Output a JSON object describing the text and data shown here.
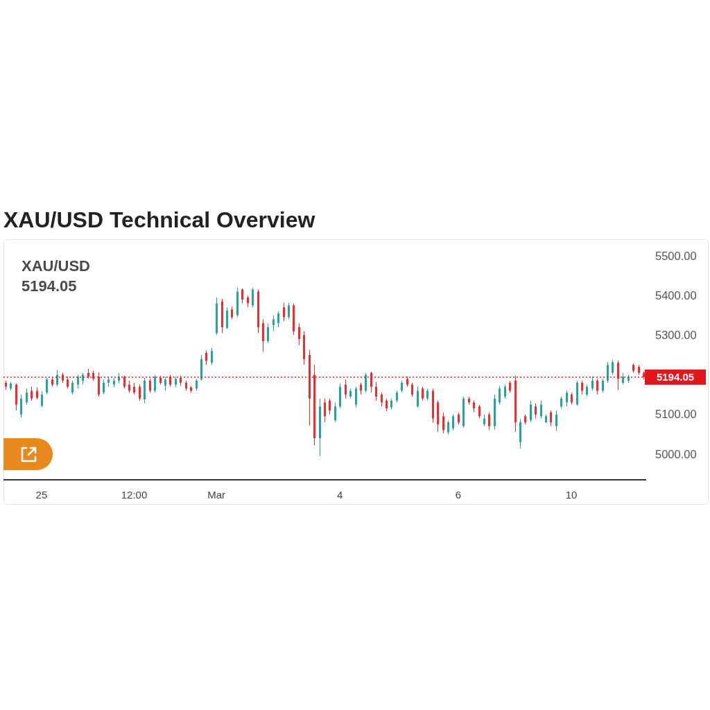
{
  "chart_data": {
    "type": "candlestick",
    "title": "XAU/USD Technical Overview",
    "annotations": [
      "XAU/USD",
      "5194.05"
    ],
    "categories": [
      null,
      null,
      null,
      null,
      null,
      null,
      null,
      "25",
      null,
      null,
      null,
      null,
      null,
      null,
      null,
      null,
      null,
      null,
      null,
      null,
      null,
      null,
      null,
      null,
      null,
      "12:00",
      null,
      null,
      null,
      null,
      null,
      null,
      null,
      null,
      null,
      null,
      null,
      null,
      null,
      null,
      null,
      "Mar",
      null,
      null,
      null,
      null,
      null,
      null,
      null,
      null,
      null,
      null,
      null,
      null,
      null,
      null,
      null,
      null,
      null,
      null,
      null,
      null,
      null,
      null,
      null,
      "4",
      null,
      null,
      null,
      null,
      null,
      null,
      null,
      null,
      null,
      null,
      null,
      null,
      null,
      null,
      null,
      null,
      null,
      null,
      null,
      null,
      null,
      null,
      "6",
      null,
      null,
      null,
      null,
      null,
      null,
      null,
      null,
      null,
      null,
      null,
      null,
      null,
      null,
      null,
      null,
      null,
      null,
      null,
      null,
      null,
      "10",
      null,
      null,
      null,
      null,
      null,
      null,
      null,
      null,
      null,
      null,
      null,
      null,
      null,
      null
    ],
    "ohlc": [
      [
        5180,
        5185,
        5162,
        5170
      ],
      [
        5165,
        5182,
        5160,
        5178
      ],
      [
        5175,
        5178,
        5110,
        5125
      ],
      [
        5100,
        5150,
        5092,
        5140
      ],
      [
        5130,
        5165,
        5125,
        5155
      ],
      [
        5160,
        5170,
        5135,
        5140
      ],
      [
        5160,
        5168,
        5138,
        5142
      ],
      [
        5122,
        5158,
        5118,
        5150
      ],
      [
        5155,
        5192,
        5150,
        5188
      ],
      [
        5188,
        5192,
        5170,
        5175
      ],
      [
        5175,
        5212,
        5170,
        5200
      ],
      [
        5200,
        5205,
        5180,
        5185
      ],
      [
        5188,
        5195,
        5165,
        5170
      ],
      [
        5155,
        5185,
        5150,
        5180
      ],
      [
        5175,
        5200,
        5165,
        5195
      ],
      [
        5185,
        5205,
        5175,
        5200
      ],
      [
        5205,
        5215,
        5190,
        5195
      ],
      [
        5205,
        5210,
        5185,
        5190
      ],
      [
        5195,
        5206,
        5145,
        5150
      ],
      [
        5155,
        5188,
        5150,
        5180
      ],
      [
        5180,
        5195,
        5170,
        5188
      ],
      [
        5175,
        5192,
        5168,
        5185
      ],
      [
        5185,
        5205,
        5178,
        5195
      ],
      [
        5195,
        5198,
        5165,
        5170
      ],
      [
        5175,
        5185,
        5155,
        5160
      ],
      [
        5170,
        5180,
        5150,
        5155
      ],
      [
        5170,
        5175,
        5135,
        5140
      ],
      [
        5138,
        5192,
        5128,
        5185
      ],
      [
        5185,
        5190,
        5155,
        5160
      ],
      [
        5160,
        5200,
        5155,
        5195
      ],
      [
        5192,
        5198,
        5175,
        5180
      ],
      [
        5172,
        5195,
        5160,
        5188
      ],
      [
        5195,
        5200,
        5170,
        5175
      ],
      [
        5175,
        5195,
        5168,
        5190
      ],
      [
        5192,
        5198,
        5172,
        5180
      ],
      [
        5180,
        5185,
        5160,
        5165
      ],
      [
        5168,
        5172,
        5155,
        5160
      ],
      [
        5165,
        5190,
        5160,
        5185
      ],
      [
        5188,
        5250,
        5185,
        5240
      ],
      [
        5255,
        5262,
        5225,
        5235
      ],
      [
        5230,
        5268,
        5225,
        5260
      ],
      [
        5305,
        5395,
        5300,
        5380
      ],
      [
        5385,
        5392,
        5305,
        5320
      ],
      [
        5318,
        5370,
        5315,
        5362
      ],
      [
        5365,
        5372,
        5340,
        5345
      ],
      [
        5350,
        5420,
        5345,
        5410
      ],
      [
        5415,
        5418,
        5380,
        5390
      ],
      [
        5395,
        5400,
        5370,
        5380
      ],
      [
        5375,
        5420,
        5370,
        5415
      ],
      [
        5410,
        5415,
        5305,
        5320
      ],
      [
        5330,
        5340,
        5258,
        5285
      ],
      [
        5285,
        5330,
        5280,
        5320
      ],
      [
        5325,
        5350,
        5310,
        5340
      ],
      [
        5330,
        5360,
        5320,
        5355
      ],
      [
        5370,
        5382,
        5335,
        5345
      ],
      [
        5345,
        5382,
        5340,
        5375
      ],
      [
        5375,
        5380,
        5300,
        5310
      ],
      [
        5320,
        5330,
        5275,
        5290
      ],
      [
        5300,
        5310,
        5225,
        5240
      ],
      [
        5250,
        5262,
        5072,
        5140
      ],
      [
        5200,
        5225,
        5022,
        5040
      ],
      [
        5040,
        5140,
        4995,
        5120
      ],
      [
        5130,
        5140,
        5080,
        5095
      ],
      [
        5135,
        5140,
        5100,
        5110
      ],
      [
        5085,
        5130,
        5080,
        5120
      ],
      [
        5120,
        5178,
        5115,
        5170
      ],
      [
        5175,
        5188,
        5140,
        5150
      ],
      [
        5145,
        5165,
        5140,
        5160
      ],
      [
        5125,
        5170,
        5118,
        5165
      ],
      [
        5175,
        5180,
        5150,
        5160
      ],
      [
        5160,
        5205,
        5155,
        5200
      ],
      [
        5205,
        5208,
        5155,
        5170
      ],
      [
        5170,
        5182,
        5135,
        5145
      ],
      [
        5150,
        5155,
        5120,
        5130
      ],
      [
        5135,
        5140,
        5108,
        5115
      ],
      [
        5118,
        5140,
        5112,
        5135
      ],
      [
        5135,
        5160,
        5130,
        5155
      ],
      [
        5160,
        5185,
        5155,
        5180
      ],
      [
        5190,
        5196,
        5170,
        5175
      ],
      [
        5175,
        5180,
        5145,
        5150
      ],
      [
        5120,
        5170,
        5117,
        5160
      ],
      [
        5165,
        5170,
        5135,
        5140
      ],
      [
        5140,
        5165,
        5135,
        5160
      ],
      [
        5160,
        5165,
        5079,
        5090
      ],
      [
        5130,
        5135,
        5056,
        5075
      ],
      [
        5095,
        5105,
        5052,
        5060
      ],
      [
        5055,
        5085,
        5049,
        5080
      ],
      [
        5065,
        5100,
        5060,
        5095
      ],
      [
        5100,
        5105,
        5075,
        5080
      ],
      [
        5070,
        5145,
        5066,
        5140
      ],
      [
        5140,
        5145,
        5125,
        5130
      ],
      [
        5130,
        5135,
        5105,
        5115
      ],
      [
        5120,
        5125,
        5090,
        5095
      ],
      [
        5075,
        5100,
        5070,
        5090
      ],
      [
        5100,
        5105,
        5060,
        5070
      ],
      [
        5070,
        5150,
        5062,
        5140
      ],
      [
        5130,
        5172,
        5125,
        5165
      ],
      [
        5145,
        5175,
        5140,
        5170
      ],
      [
        5180,
        5185,
        5155,
        5160
      ],
      [
        5185,
        5198,
        5056,
        5080
      ],
      [
        5030,
        5090,
        5014,
        5080
      ],
      [
        5095,
        5100,
        5075,
        5080
      ],
      [
        5085,
        5135,
        5080,
        5125
      ],
      [
        5120,
        5128,
        5090,
        5100
      ],
      [
        5095,
        5135,
        5090,
        5125
      ],
      [
        5080,
        5100,
        5078,
        5095
      ],
      [
        5105,
        5110,
        5070,
        5080
      ],
      [
        5070,
        5110,
        5058,
        5100
      ],
      [
        5120,
        5145,
        5115,
        5140
      ],
      [
        5130,
        5160,
        5120,
        5155
      ],
      [
        5150,
        5155,
        5125,
        5130
      ],
      [
        5125,
        5185,
        5122,
        5180
      ],
      [
        5180,
        5185,
        5150,
        5160
      ],
      [
        5150,
        5175,
        5145,
        5170
      ],
      [
        5165,
        5195,
        5160,
        5185
      ],
      [
        5185,
        5190,
        5150,
        5160
      ],
      [
        5160,
        5190,
        5155,
        5185
      ],
      [
        5185,
        5232,
        5180,
        5225
      ],
      [
        5205,
        5238,
        5200,
        5232
      ],
      [
        5230,
        5236,
        5161,
        5190
      ],
      [
        5180,
        5205,
        5175,
        5195
      ],
      [
        5185,
        5200,
        5180,
        5195
      ],
      [
        5225,
        5228,
        5205,
        5210
      ],
      [
        5220,
        5225,
        5200,
        5205
      ],
      [
        5205,
        5208,
        5188,
        5194
      ]
    ],
    "colors": [
      "#ef2b2d",
      "#26a69a",
      "#ef2b2d",
      "#26a69a",
      "#26a69a",
      "#ef2b2d",
      "#ef2b2d",
      "#26a69a",
      "#26a69a",
      "#ef2b2d",
      "#26a69a",
      "#ef2b2d",
      "#ef2b2d",
      "#26a69a",
      "#26a69a",
      "#26a69a",
      "#ef2b2d",
      "#ef2b2d",
      "#ef2b2d",
      "#26a69a",
      "#26a69a",
      "#26a69a",
      "#26a69a",
      "#ef2b2d",
      "#ef2b2d",
      "#ef2b2d",
      "#ef2b2d",
      "#26a69a",
      "#ef2b2d",
      "#26a69a",
      "#ef2b2d",
      "#26a69a",
      "#ef2b2d",
      "#26a69a",
      "#ef2b2d",
      "#ef2b2d",
      "#ef2b2d",
      "#26a69a",
      "#26a69a",
      "#ef2b2d",
      "#26a69a",
      "#26a69a",
      "#ef2b2d",
      "#26a69a",
      "#ef2b2d",
      "#26a69a",
      "#ef2b2d",
      "#ef2b2d",
      "#26a69a",
      "#ef2b2d",
      "#ef2b2d",
      "#26a69a",
      "#26a69a",
      "#26a69a",
      "#ef2b2d",
      "#26a69a",
      "#ef2b2d",
      "#ef2b2d",
      "#ef2b2d",
      "#ef2b2d",
      "#ef2b2d",
      "#26a69a",
      "#ef2b2d",
      "#ef2b2d",
      "#26a69a",
      "#26a69a",
      "#ef2b2d",
      "#26a69a",
      "#26a69a",
      "#ef2b2d",
      "#26a69a",
      "#ef2b2d",
      "#ef2b2d",
      "#ef2b2d",
      "#ef2b2d",
      "#26a69a",
      "#26a69a",
      "#26a69a",
      "#ef2b2d",
      "#ef2b2d",
      "#26a69a",
      "#ef2b2d",
      "#26a69a",
      "#ef2b2d",
      "#ef2b2d",
      "#ef2b2d",
      "#26a69a",
      "#26a69a",
      "#ef2b2d",
      "#26a69a",
      "#ef2b2d",
      "#ef2b2d",
      "#ef2b2d",
      "#26a69a",
      "#ef2b2d",
      "#26a69a",
      "#26a69a",
      "#26a69a",
      "#ef2b2d",
      "#ef2b2d",
      "#26a69a",
      "#ef2b2d",
      "#26a69a",
      "#ef2b2d",
      "#26a69a",
      "#26a69a",
      "#ef2b2d",
      "#26a69a",
      "#26a69a",
      "#26a69a",
      "#ef2b2d",
      "#26a69a",
      "#ef2b2d",
      "#26a69a",
      "#26a69a",
      "#ef2b2d",
      "#26a69a",
      "#26a69a",
      "#26a69a",
      "#ef2b2d",
      "#26a69a",
      "#26a69a",
      "#ef2b2d",
      "#ef2b2d",
      "#ef2b2d"
    ],
    "ylim": [
      4935,
      5542
    ],
    "yticks": [
      {
        "value": 5000,
        "label": "5000.00"
      },
      {
        "value": 5100,
        "label": "5100.00"
      },
      {
        "value": 5300,
        "label": "5300.00"
      },
      {
        "value": 5400,
        "label": "5400.00"
      },
      {
        "value": 5500,
        "label": "5500.00"
      }
    ],
    "ref_lines": [
      {
        "axis": "y",
        "value": 5194.05,
        "label": "5194.05",
        "color": "#e3161e",
        "line_style": "dotted"
      }
    ]
  }
}
